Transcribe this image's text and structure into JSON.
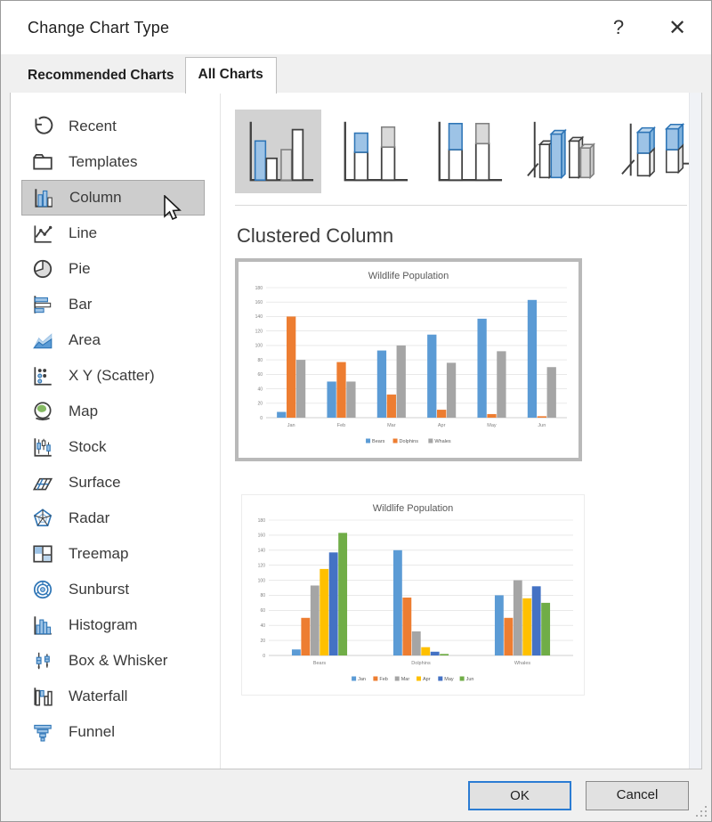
{
  "dialog": {
    "title": "Change Chart Type",
    "help_icon": "?",
    "close_icon": "✕"
  },
  "tabs": [
    {
      "label": "Recommended Charts",
      "active": false
    },
    {
      "label": "All Charts",
      "active": true
    }
  ],
  "sidebar": {
    "items": [
      {
        "label": "Recent",
        "icon": "recent-icon",
        "selected": false
      },
      {
        "label": "Templates",
        "icon": "templates-icon",
        "selected": false
      },
      {
        "label": "Column",
        "icon": "column-icon",
        "selected": true
      },
      {
        "label": "Line",
        "icon": "line-icon",
        "selected": false
      },
      {
        "label": "Pie",
        "icon": "pie-icon",
        "selected": false
      },
      {
        "label": "Bar",
        "icon": "bar-icon",
        "selected": false
      },
      {
        "label": "Area",
        "icon": "area-icon",
        "selected": false
      },
      {
        "label": "X Y (Scatter)",
        "icon": "scatter-icon",
        "selected": false
      },
      {
        "label": "Map",
        "icon": "map-icon",
        "selected": false
      },
      {
        "label": "Stock",
        "icon": "stock-icon",
        "selected": false
      },
      {
        "label": "Surface",
        "icon": "surface-icon",
        "selected": false
      },
      {
        "label": "Radar",
        "icon": "radar-icon",
        "selected": false
      },
      {
        "label": "Treemap",
        "icon": "treemap-icon",
        "selected": false
      },
      {
        "label": "Sunburst",
        "icon": "sunburst-icon",
        "selected": false
      },
      {
        "label": "Histogram",
        "icon": "histogram-icon",
        "selected": false
      },
      {
        "label": "Box & Whisker",
        "icon": "boxwhisker-icon",
        "selected": false
      },
      {
        "label": "Waterfall",
        "icon": "waterfall-icon",
        "selected": false
      },
      {
        "label": "Funnel",
        "icon": "funnel-icon",
        "selected": false
      }
    ]
  },
  "gallery": {
    "thumbnails": [
      {
        "name": "clustered-column",
        "selected": true
      },
      {
        "name": "stacked-column",
        "selected": false
      },
      {
        "name": "100-percent-stacked-column",
        "selected": false
      },
      {
        "name": "3d-clustered-column",
        "selected": false
      },
      {
        "name": "3d-stacked-column",
        "selected": false
      }
    ]
  },
  "section": {
    "heading": "Clustered Column"
  },
  "footer": {
    "ok_label": "OK",
    "cancel_label": "Cancel"
  },
  "colors": {
    "accent_blue": "#2b7cd3",
    "selection_gray": "#cdcdcd",
    "series_blue": "#5B9BD5",
    "series_orange": "#ED7D31",
    "series_gray": "#A5A5A5",
    "series_yellow": "#FFC000",
    "series_dark_blue": "#4472C4",
    "series_green": "#70AD47"
  },
  "chart_data": [
    {
      "type": "bar",
      "title": "Wildlife Population",
      "categories": [
        "Jan",
        "Feb",
        "Mar",
        "Apr",
        "May",
        "Jun"
      ],
      "series": [
        {
          "name": "Bears",
          "color": "#5B9BD5",
          "values": [
            8,
            50,
            93,
            115,
            137,
            163
          ]
        },
        {
          "name": "Dolphins",
          "color": "#ED7D31",
          "values": [
            140,
            77,
            32,
            11,
            5,
            2
          ]
        },
        {
          "name": "Whales",
          "color": "#A5A5A5",
          "values": [
            80,
            50,
            100,
            76,
            92,
            70
          ]
        }
      ],
      "ylim": [
        0,
        180
      ],
      "ytick": 20,
      "grid": true,
      "legend_position": "bottom"
    },
    {
      "type": "bar",
      "title": "Wildlife Population",
      "categories": [
        "Bears",
        "Dolphins",
        "Whales"
      ],
      "series": [
        {
          "name": "Jan",
          "color": "#5B9BD5",
          "values": [
            8,
            140,
            80
          ]
        },
        {
          "name": "Feb",
          "color": "#ED7D31",
          "values": [
            50,
            77,
            50
          ]
        },
        {
          "name": "Mar",
          "color": "#A5A5A5",
          "values": [
            93,
            32,
            100
          ]
        },
        {
          "name": "Apr",
          "color": "#FFC000",
          "values": [
            115,
            11,
            76
          ]
        },
        {
          "name": "May",
          "color": "#4472C4",
          "values": [
            137,
            5,
            92
          ]
        },
        {
          "name": "Jun",
          "color": "#70AD47",
          "values": [
            163,
            2,
            70
          ]
        }
      ],
      "ylim": [
        0,
        180
      ],
      "ytick": 20,
      "grid": true,
      "legend_position": "bottom"
    }
  ]
}
